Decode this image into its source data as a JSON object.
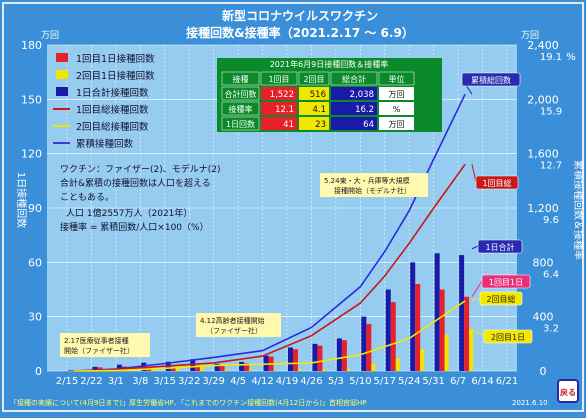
{
  "title_line1": "新型コロナウイルスワクチン",
  "title_line2": "接種回数&接種率（2021.2.17 ～ 6.9）",
  "left_unit": "万回",
  "right_unit": "万回",
  "right_pct": "%",
  "left_axis_label": "1日接種回数",
  "right_axis_label": "累積接種回数＆接種率",
  "legend": [
    {
      "label": "1回目1日接種回数",
      "color": "#e8202a",
      "kind": "box"
    },
    {
      "label": "2回目1日接種回数",
      "color": "#f2e600",
      "kind": "box"
    },
    {
      "label": "1日合計接種回数",
      "color": "#1a1aa8",
      "kind": "box"
    },
    {
      "label": "1回目総接種回数",
      "color": "#c81818",
      "kind": "line"
    },
    {
      "label": "2回目総接種回数",
      "color": "#f2e600",
      "kind": "line"
    },
    {
      "label": "累積接種回数",
      "color": "#3a3ae0",
      "kind": "line"
    }
  ],
  "table": {
    "title": "2021年6月9日接種回数＆接種率",
    "headers": [
      "接種",
      "1回目",
      "2回目",
      "総合計",
      "単位"
    ],
    "rows": [
      {
        "label": "合計回数",
        "v1": "1,522",
        "v2": "516",
        "v3": "2,038",
        "unit": "万回"
      },
      {
        "label": "接種率",
        "v1": "12.1",
        "v2": "4.1",
        "v3": "16.2",
        "unit": "%"
      },
      {
        "label": "1日回数",
        "v1": "41",
        "v2": "23",
        "v3": "64",
        "unit": "万回"
      }
    ]
  },
  "notes": [
    "ワクチン：ファイザー(2)、モデルナ(2)",
    "合計&累積の接種回数は人口を超える",
    "こともある。",
    "人口 1億2557万人（2021年）",
    "接種率 = 累積回数/人口×100（%）"
  ],
  "annotations": [
    {
      "text": [
        "2.17医療従事者接種",
        "開始（ファイザー社）"
      ]
    },
    {
      "text": [
        "4.12高齢者接種開始",
        "（ファイザー社）"
      ]
    },
    {
      "text": [
        "5.24東・大・兵庫等大規模",
        "接種開始（モデルナ社）"
      ]
    }
  ],
  "line_labels": {
    "cumulative": "累積総回数",
    "first_total": "1回目総",
    "daily_total": "1日合計",
    "first_daily": "1回目1日",
    "second_total": "2回目総",
    "second_daily": "2回目1日"
  },
  "footer": "「接種の実績について(4月9日まで)」厚生労働省HP、「これまでのワクチン接種回数(4月12日から)」首相官邸HP",
  "footer_date": "2021.6.10",
  "back_label": "戻る",
  "colors": {
    "bg": "#3a8fd8",
    "plot": "#96ccef",
    "bar1": "#e8202a",
    "bar2": "#f2e600",
    "bar3": "#1a1aa8",
    "title": "#ffffff"
  },
  "chart_data": {
    "type": "bar",
    "x_ticks": [
      "2/15",
      "2/22",
      "3/1",
      "3/8",
      "3/15",
      "3/22",
      "3/29",
      "4/5",
      "4/12",
      "4/19",
      "4/26",
      "5/3",
      "5/10",
      "5/17",
      "5/24",
      "5/31",
      "6/7",
      "6/14",
      "6/21"
    ],
    "x_range": [
      "2021-02-15",
      "2021-06-21"
    ],
    "left_axis": {
      "label": "1日接種回数",
      "unit": "万回",
      "ylim": [
        0,
        180
      ],
      "ticks": [
        0,
        30,
        60,
        90,
        120,
        150,
        180
      ]
    },
    "right_axis": {
      "label": "累積接種回数＆接種率",
      "unit": "万回",
      "ylim": [
        0,
        2400
      ],
      "ticks": [
        0,
        400,
        800,
        1200,
        1600,
        2000,
        2400
      ],
      "pct_ticks": [
        "3.2",
        "6.4",
        "9.6",
        "12.7",
        "15.9",
        "19.1"
      ]
    },
    "daily_dates": [
      "2/17",
      "2/24",
      "3/3",
      "3/10",
      "3/17",
      "3/24",
      "3/31",
      "4/7",
      "4/14",
      "4/21",
      "4/28",
      "5/5",
      "5/12",
      "5/19",
      "5/26",
      "6/2",
      "6/9"
    ],
    "daily_total": [
      0.3,
      2.3,
      3.5,
      4.6,
      5.1,
      6.5,
      4.0,
      5.0,
      8.5,
      13.0,
      15.0,
      18.0,
      30.0,
      45.0,
      60.0,
      65.0,
      64.0
    ],
    "daily_first": [
      0.3,
      2.0,
      2.5,
      2.3,
      2.2,
      3.0,
      3.2,
      4.2,
      8.0,
      12.0,
      14.0,
      17.0,
      26.0,
      38.0,
      48.0,
      45.0,
      41.0
    ],
    "daily_second": [
      0,
      0.3,
      1.0,
      2.3,
      2.9,
      3.5,
      0.8,
      0.8,
      0.5,
      1.0,
      1.0,
      1.0,
      4.0,
      7.0,
      12.0,
      20.0,
      23.0
    ],
    "series": [
      {
        "name": "累積接種回数",
        "x": [
          "2/17",
          "3/1",
          "3/15",
          "3/29",
          "4/12",
          "4/26",
          "5/10",
          "5/17",
          "5/24",
          "5/31",
          "6/9"
        ],
        "values": [
          0,
          15,
          55,
          100,
          150,
          320,
          620,
          880,
          1180,
          1560,
          2038
        ]
      },
      {
        "name": "1回目総接種回数",
        "x": [
          "2/17",
          "3/1",
          "3/15",
          "3/29",
          "4/12",
          "4/26",
          "5/10",
          "5/17",
          "5/24",
          "5/31",
          "6/9"
        ],
        "values": [
          0,
          12,
          35,
          60,
          110,
          260,
          500,
          700,
          940,
          1200,
          1522
        ]
      },
      {
        "name": "2回目総接種回数",
        "x": [
          "2/17",
          "3/1",
          "3/15",
          "3/29",
          "4/12",
          "4/26",
          "5/10",
          "5/17",
          "5/24",
          "5/31",
          "6/9"
        ],
        "values": [
          0,
          3,
          20,
          40,
          50,
          60,
          120,
          180,
          240,
          360,
          516
        ]
      }
    ]
  }
}
